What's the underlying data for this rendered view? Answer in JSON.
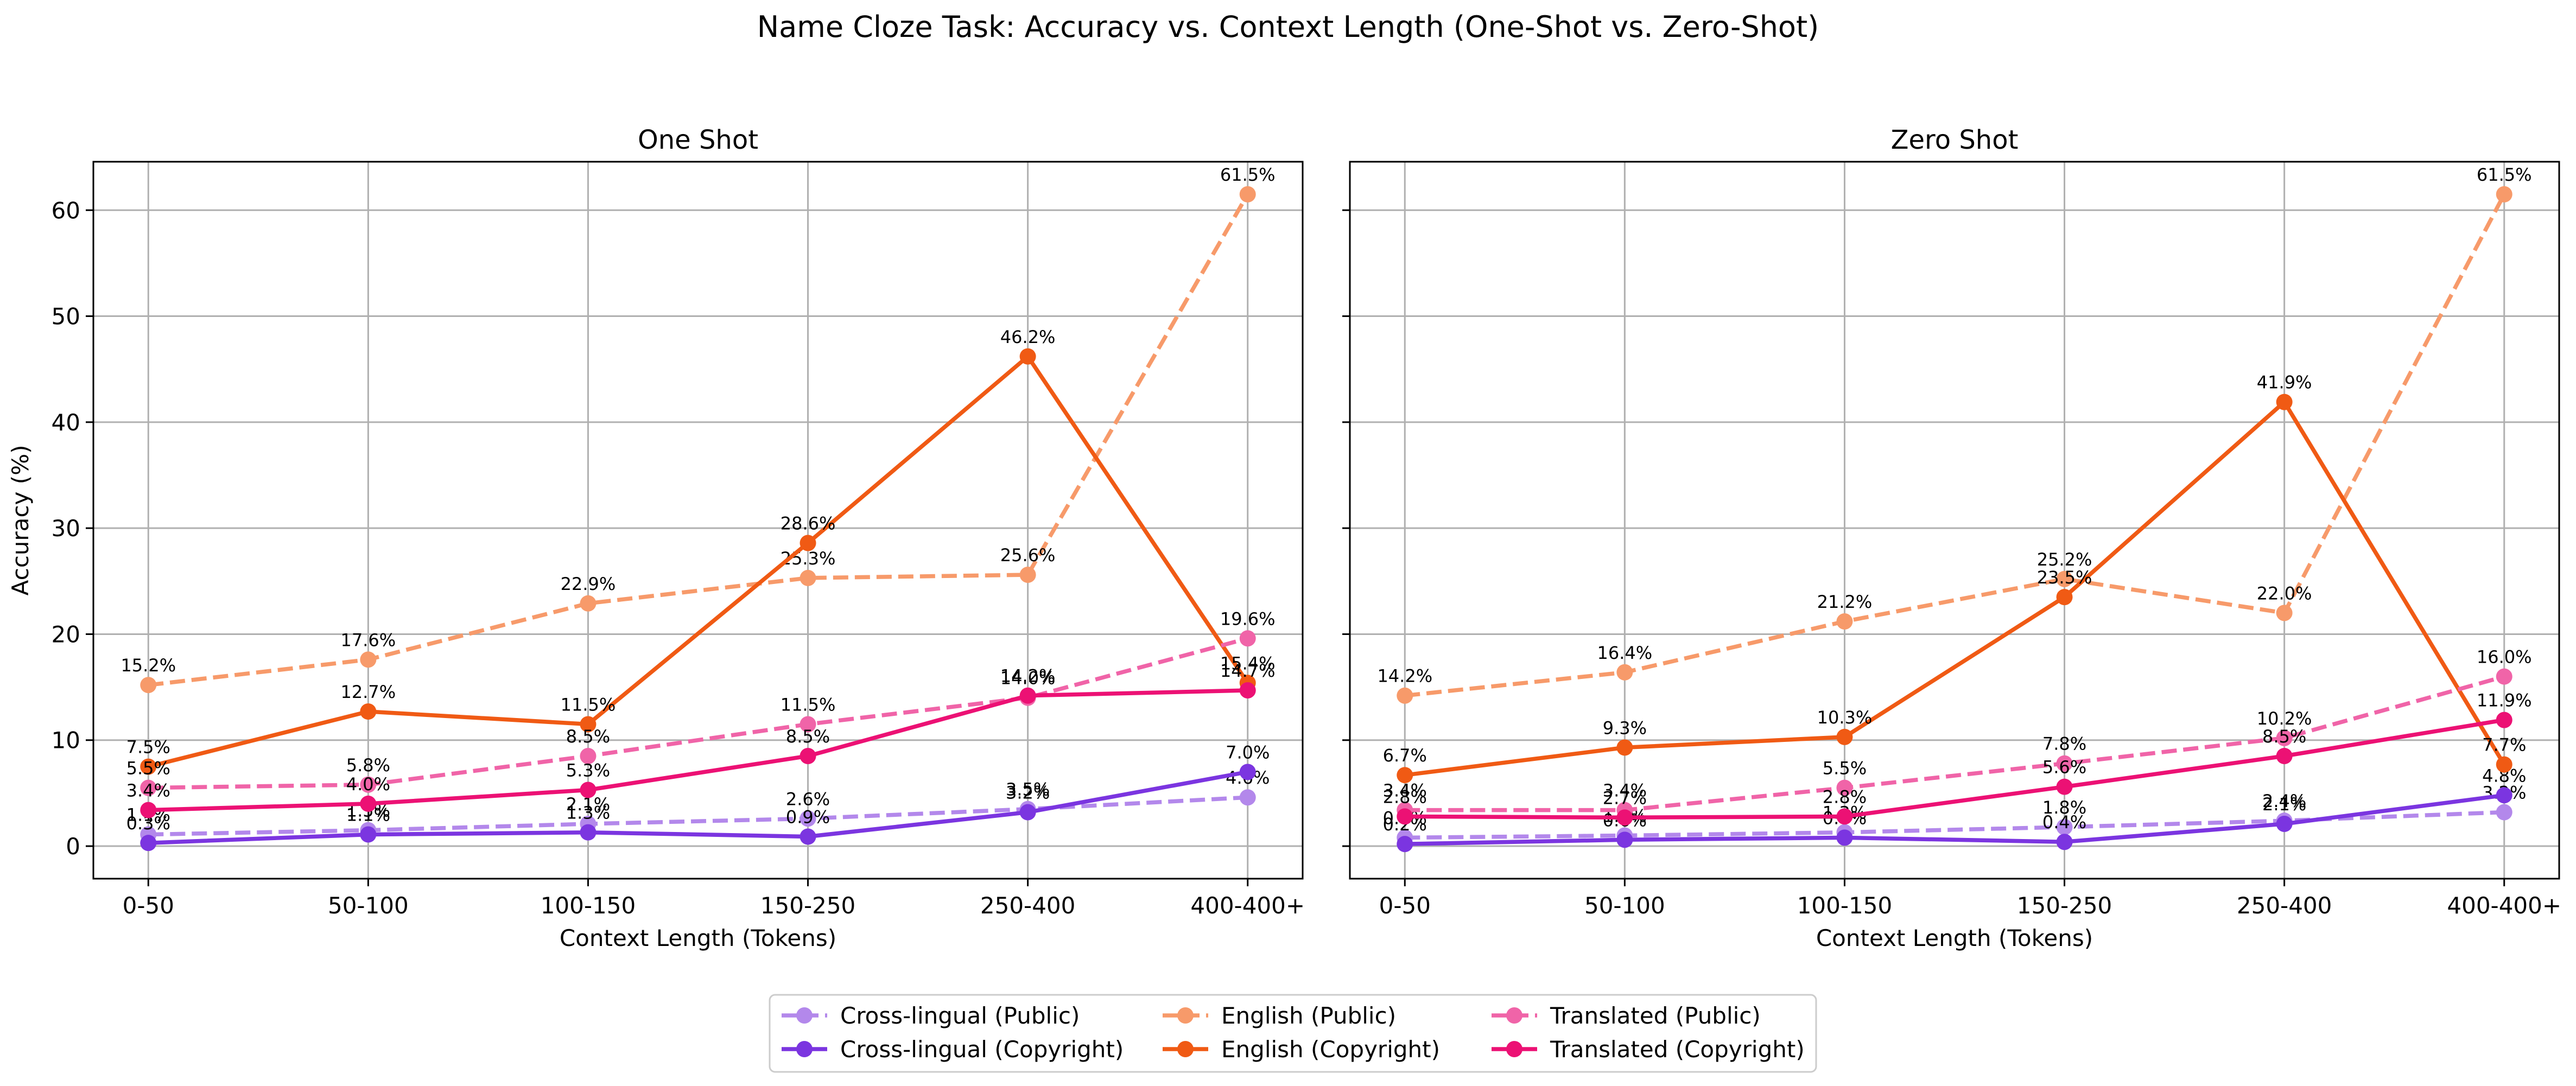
{
  "figure_title": "Name Cloze Task: Accuracy vs. Context Length (One-Shot vs. Zero-Shot)",
  "series_styles": [
    {
      "name": "Cross-lingual (Public)",
      "color": "#b388eb",
      "dash": "dashed"
    },
    {
      "name": "Cross-lingual (Copyright)",
      "color": "#7b35e0",
      "dash": "solid"
    },
    {
      "name": "English (Public)",
      "color": "#f79a6a",
      "dash": "dashed"
    },
    {
      "name": "English (Copyright)",
      "color": "#f05a14",
      "dash": "solid"
    },
    {
      "name": "Translated (Public)",
      "color": "#f064a8",
      "dash": "dashed"
    },
    {
      "name": "Translated (Copyright)",
      "color": "#ec1174",
      "dash": "solid"
    }
  ],
  "legend": {
    "placement": "bottom-center",
    "columns": 3,
    "entries": [
      "Cross-lingual (Public)",
      "Cross-lingual (Copyright)",
      "English (Public)",
      "English (Copyright)",
      "Translated (Public)",
      "Translated (Copyright)"
    ]
  },
  "chart_data": [
    {
      "type": "line",
      "title": "One Shot",
      "xlabel": "Context Length (Tokens)",
      "ylabel": "Accuracy (%)",
      "categories": [
        "0-50",
        "50-100",
        "100-150",
        "150-250",
        "250-400",
        "400-400+"
      ],
      "ylim": [
        -3.07,
        64.57
      ],
      "yticks": [
        0,
        10,
        20,
        30,
        40,
        50,
        60
      ],
      "grid": true,
      "series": [
        {
          "name": "Cross-lingual (Public)",
          "values": [
            1.1,
            1.5,
            2.1,
            2.6,
            3.5,
            4.6
          ],
          "labels": [
            "1.1%",
            "1.5%",
            "2.1%",
            "2.6%",
            "3.5%",
            "4.6%"
          ]
        },
        {
          "name": "Cross-lingual (Copyright)",
          "values": [
            0.3,
            1.1,
            1.3,
            0.9,
            3.2,
            7.0
          ],
          "labels": [
            "0.3%",
            "1.1%",
            "1.3%",
            "0.9%",
            "3.2%",
            "7.0%"
          ]
        },
        {
          "name": "English (Public)",
          "values": [
            15.2,
            17.6,
            22.9,
            25.3,
            25.6,
            61.5
          ],
          "labels": [
            "15.2%",
            "17.6%",
            "22.9%",
            "25.3%",
            "25.6%",
            "61.5%"
          ]
        },
        {
          "name": "English (Copyright)",
          "values": [
            7.5,
            12.7,
            11.5,
            28.6,
            46.2,
            15.4
          ],
          "labels": [
            "7.5%",
            "12.7%",
            "11.5%",
            "28.6%",
            "46.2%",
            "15.4%"
          ]
        },
        {
          "name": "Translated (Public)",
          "values": [
            5.5,
            5.8,
            8.5,
            11.5,
            14.0,
            19.6
          ],
          "labels": [
            "5.5%",
            "5.8%",
            "8.5%",
            "11.5%",
            "14.0%",
            "19.6%"
          ]
        },
        {
          "name": "Translated (Copyright)",
          "values": [
            3.4,
            4.0,
            5.3,
            8.5,
            14.2,
            14.7
          ],
          "labels": [
            "3.4%",
            "4.0%",
            "5.3%",
            "8.5%",
            "14.2%",
            "14.7%"
          ]
        }
      ]
    },
    {
      "type": "line",
      "title": "Zero Shot",
      "xlabel": "Context Length (Tokens)",
      "ylabel": "",
      "categories": [
        "0-50",
        "50-100",
        "100-150",
        "150-250",
        "250-400",
        "400-400+"
      ],
      "ylim": [
        -3.07,
        64.57
      ],
      "yticks": [
        0,
        10,
        20,
        30,
        40,
        50,
        60
      ],
      "grid": true,
      "series": [
        {
          "name": "Cross-lingual (Public)",
          "values": [
            0.8,
            1.0,
            1.3,
            1.8,
            2.4,
            3.2
          ],
          "labels": [
            "0.8%",
            "1.0%",
            "1.3%",
            "1.8%",
            "2.4%",
            "3.2%"
          ]
        },
        {
          "name": "Cross-lingual (Copyright)",
          "values": [
            0.2,
            0.6,
            0.8,
            0.4,
            2.1,
            4.8
          ],
          "labels": [
            "0.2%",
            "0.6%",
            "0.8%",
            "0.4%",
            "2.1%",
            "4.8%"
          ]
        },
        {
          "name": "English (Public)",
          "values": [
            14.2,
            16.4,
            21.2,
            25.2,
            22.0,
            61.5
          ],
          "labels": [
            "14.2%",
            "16.4%",
            "21.2%",
            "25.2%",
            "22.0%",
            "61.5%"
          ]
        },
        {
          "name": "English (Copyright)",
          "values": [
            6.7,
            9.3,
            10.3,
            23.5,
            41.9,
            7.7
          ],
          "labels": [
            "6.7%",
            "9.3%",
            "10.3%",
            "23.5%",
            "41.9%",
            "7.7%"
          ]
        },
        {
          "name": "Translated (Public)",
          "values": [
            3.4,
            3.4,
            5.5,
            7.8,
            10.2,
            16.0
          ],
          "labels": [
            "3.4%",
            "3.4%",
            "5.5%",
            "7.8%",
            "10.2%",
            "16.0%"
          ]
        },
        {
          "name": "Translated (Copyright)",
          "values": [
            2.8,
            2.7,
            2.8,
            5.6,
            8.5,
            11.9
          ],
          "labels": [
            "2.8%",
            "2.7%",
            "2.8%",
            "5.6%",
            "8.5%",
            "11.9%"
          ]
        }
      ]
    }
  ]
}
